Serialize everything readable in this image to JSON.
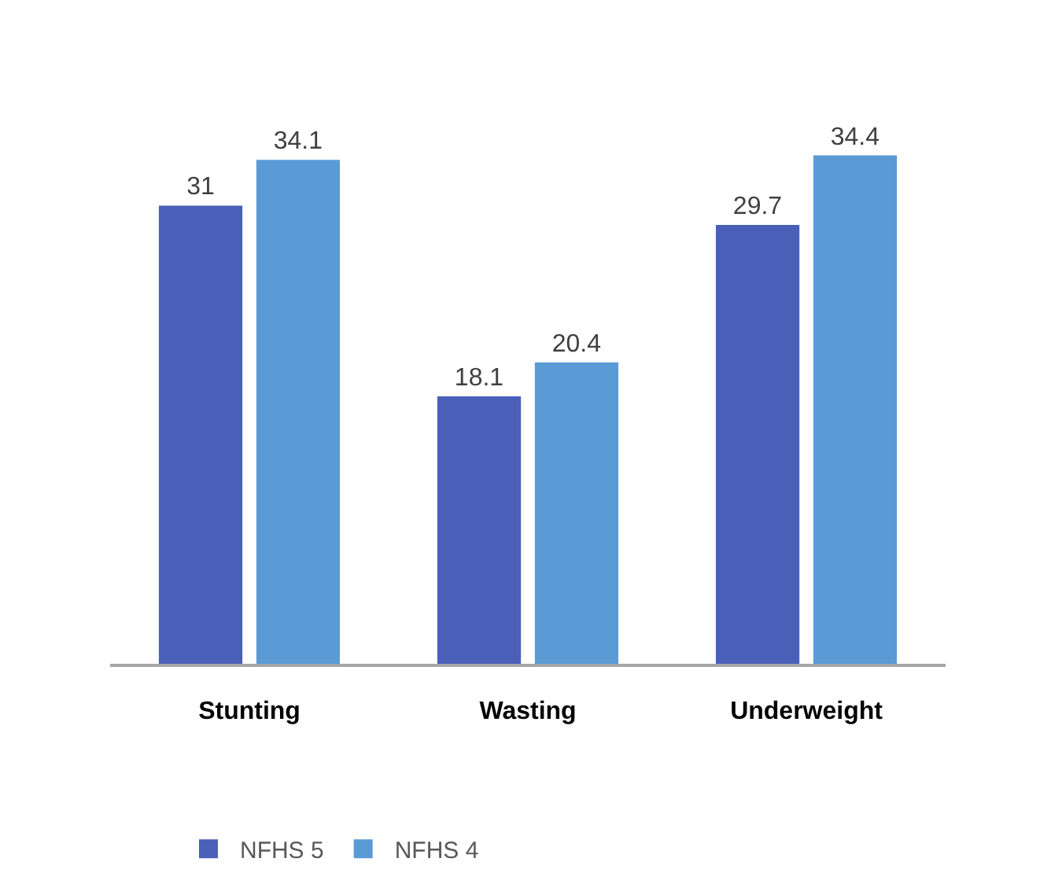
{
  "chart_data": {
    "type": "bar",
    "categories": [
      "Stunting",
      "Wasting",
      "Underweight"
    ],
    "series": [
      {
        "name": "NFHS 5",
        "color": "#4a5fb8",
        "values": [
          31,
          18.1,
          29.7
        ]
      },
      {
        "name": "NFHS 4",
        "color": "#5b9bd5",
        "values": [
          34.1,
          20.4,
          34.4
        ]
      }
    ],
    "data_labels": true,
    "legend": "bottom",
    "grid": false
  }
}
